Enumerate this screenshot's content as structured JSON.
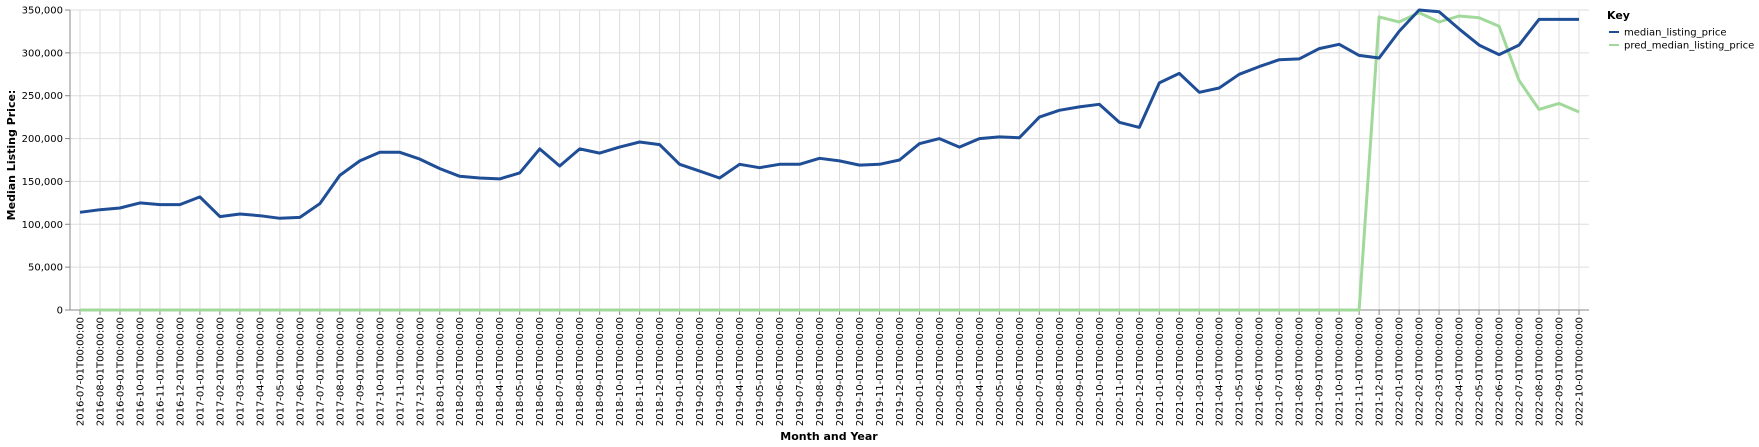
{
  "chart_data": {
    "type": "line",
    "xlabel": "Month and Year",
    "ylabel": "Median Listing Price:",
    "ylim": [
      0,
      350000
    ],
    "yticks": [
      0,
      50000,
      100000,
      150000,
      200000,
      250000,
      300000,
      350000
    ],
    "ytick_labels": [
      "0",
      "50,000",
      "100,000",
      "150,000",
      "200,000",
      "250,000",
      "300,000",
      "350,000"
    ],
    "grid": true,
    "legend": {
      "title": "Key",
      "placement": "right"
    },
    "x": [
      "2016-07-01T00:00:00",
      "2016-08-01T00:00:00",
      "2016-09-01T00:00:00",
      "2016-10-01T00:00:00",
      "2016-11-01T00:00:00",
      "2016-12-01T00:00:00",
      "2017-01-01T00:00:00",
      "2017-02-01T00:00:00",
      "2017-03-01T00:00:00",
      "2017-04-01T00:00:00",
      "2017-05-01T00:00:00",
      "2017-06-01T00:00:00",
      "2017-07-01T00:00:00",
      "2017-08-01T00:00:00",
      "2017-09-01T00:00:00",
      "2017-10-01T00:00:00",
      "2017-11-01T00:00:00",
      "2017-12-01T00:00:00",
      "2018-01-01T00:00:00",
      "2018-02-01T00:00:00",
      "2018-03-01T00:00:00",
      "2018-04-01T00:00:00",
      "2018-05-01T00:00:00",
      "2018-06-01T00:00:00",
      "2018-07-01T00:00:00",
      "2018-08-01T00:00:00",
      "2018-09-01T00:00:00",
      "2018-10-01T00:00:00",
      "2018-11-01T00:00:00",
      "2018-12-01T00:00:00",
      "2019-01-01T00:00:00",
      "2019-02-01T00:00:00",
      "2019-03-01T00:00:00",
      "2019-04-01T00:00:00",
      "2019-05-01T00:00:00",
      "2019-06-01T00:00:00",
      "2019-07-01T00:00:00",
      "2019-08-01T00:00:00",
      "2019-09-01T00:00:00",
      "2019-10-01T00:00:00",
      "2019-11-01T00:00:00",
      "2019-12-01T00:00:00",
      "2020-01-01T00:00:00",
      "2020-02-01T00:00:00",
      "2020-03-01T00:00:00",
      "2020-04-01T00:00:00",
      "2020-05-01T00:00:00",
      "2020-06-01T00:00:00",
      "2020-07-01T00:00:00",
      "2020-08-01T00:00:00",
      "2020-09-01T00:00:00",
      "2020-10-01T00:00:00",
      "2020-11-01T00:00:00",
      "2020-12-01T00:00:00",
      "2021-01-01T00:00:00",
      "2021-02-01T00:00:00",
      "2021-03-01T00:00:00",
      "2021-04-01T00:00:00",
      "2021-05-01T00:00:00",
      "2021-06-01T00:00:00",
      "2021-07-01T00:00:00",
      "2021-08-01T00:00:00",
      "2021-09-01T00:00:00",
      "2021-10-01T00:00:00",
      "2021-11-01T00:00:00",
      "2021-12-01T00:00:00",
      "2022-01-01T00:00:00",
      "2022-02-01T00:00:00",
      "2022-03-01T00:00:00",
      "2022-04-01T00:00:00",
      "2022-05-01T00:00:00",
      "2022-06-01T00:00:00",
      "2022-07-01T00:00:00",
      "2022-08-01T00:00:00",
      "2022-09-01T00:00:00",
      "2022-10-01T00:00:00"
    ],
    "series": [
      {
        "name": "median_listing_price",
        "color": "#1f4e96",
        "values": [
          114000,
          117000,
          119000,
          125000,
          123000,
          123000,
          132000,
          109000,
          112000,
          110000,
          107000,
          108000,
          124000,
          157000,
          174000,
          184000,
          184000,
          176000,
          165000,
          156000,
          154000,
          153000,
          160000,
          188000,
          168000,
          188000,
          183000,
          190000,
          196000,
          193000,
          170000,
          162000,
          154000,
          170000,
          166000,
          170000,
          170000,
          177000,
          174000,
          169000,
          170000,
          175000,
          194000,
          200000,
          190000,
          200000,
          202000,
          201000,
          225000,
          233000,
          237000,
          240000,
          219000,
          213000,
          265000,
          276000,
          254000,
          259000,
          275000,
          284000,
          292000,
          293000,
          305000,
          310000,
          297000,
          294000,
          325000,
          350000,
          348000,
          328000,
          309000,
          298000,
          309000,
          339000,
          339000,
          339000
        ]
      },
      {
        "name": "pred_median_listing_price",
        "color": "#a1d99b",
        "values": [
          0,
          0,
          0,
          0,
          0,
          0,
          0,
          0,
          0,
          0,
          0,
          0,
          0,
          0,
          0,
          0,
          0,
          0,
          0,
          0,
          0,
          0,
          0,
          0,
          0,
          0,
          0,
          0,
          0,
          0,
          0,
          0,
          0,
          0,
          0,
          0,
          0,
          0,
          0,
          0,
          0,
          0,
          0,
          0,
          0,
          0,
          0,
          0,
          0,
          0,
          0,
          0,
          0,
          0,
          0,
          0,
          0,
          0,
          0,
          0,
          0,
          0,
          0,
          0,
          0,
          342000,
          336000,
          347000,
          336000,
          343000,
          341000,
          331000,
          268000,
          234000,
          241000,
          231000
        ]
      }
    ]
  }
}
